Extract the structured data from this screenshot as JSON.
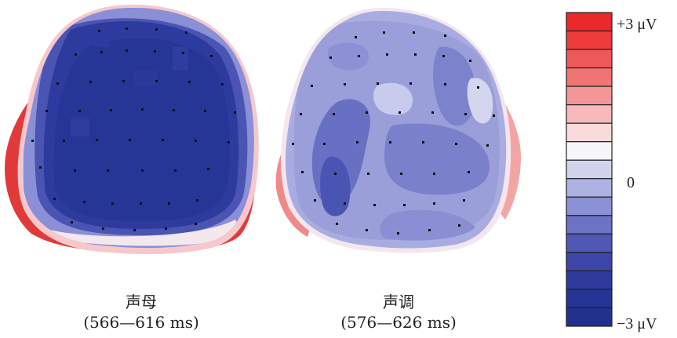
{
  "maps": [
    {
      "condition": "声母",
      "window": "(566—616 ms)",
      "interior_color": "#2a3a9c",
      "rim_color": "#e23a3a"
    },
    {
      "condition": "声调",
      "window": "(576—626 ms)",
      "interior_color": "#8a8fd6",
      "rim_color": "#f07a7a"
    }
  ],
  "color_scale": {
    "max_label": "+3 μV",
    "mid_label": "0",
    "min_label": "−3 μV",
    "colors": [
      "#ea2a2a",
      "#ec3c3c",
      "#ee5858",
      "#f07474",
      "#f39696",
      "#f6b8b8",
      "#fadada",
      "#f6f6fb",
      "#d2d4ef",
      "#aeb2e2",
      "#8c90d4",
      "#6c72c4",
      "#5058b4",
      "#3c46a6",
      "#2e3a9c",
      "#263495",
      "#22308e"
    ]
  },
  "colors": {
    "dark_blue": "#263697",
    "mid_blue": "#7c82cc",
    "light_blue": "#b6b9e6",
    "red": "#e23232",
    "pink": "#f4b0b0",
    "white": "#ffffff",
    "electrode": "#111111"
  }
}
